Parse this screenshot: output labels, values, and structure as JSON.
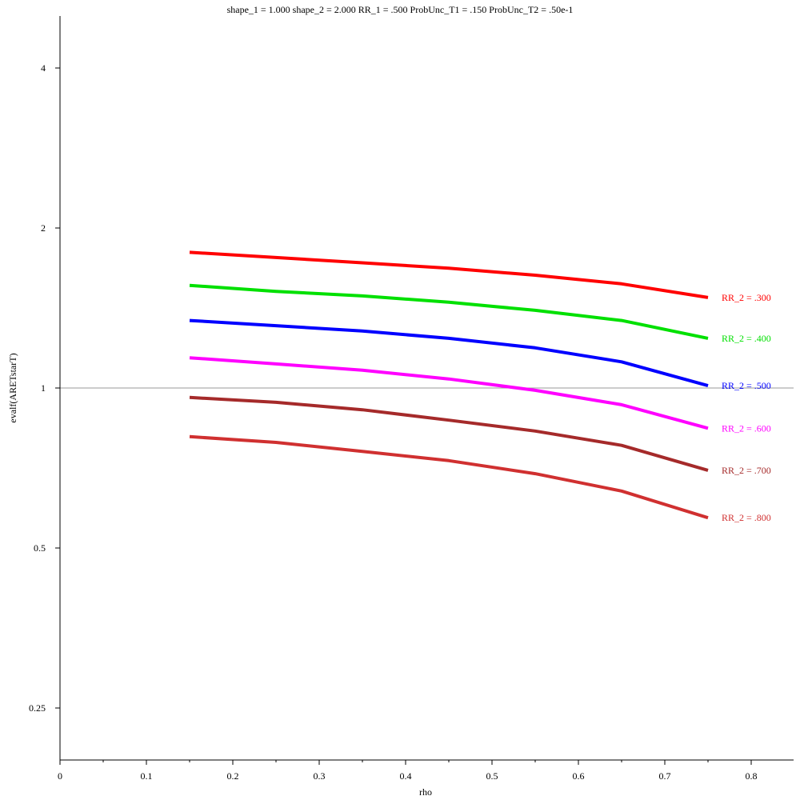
{
  "chart_data": {
    "type": "line",
    "title": "shape_1 = 1.000  shape_2 = 2.000  RR_1 = .500  ProbUnc_T1 = .150  ProbUnc_T2 = .50e-1",
    "xlabel": "rho",
    "ylabel": "evalf(ARETstarT)",
    "y_scale": "log2",
    "xlim": [
      0,
      0.85
    ],
    "ylim": [
      0.2,
      4.8
    ],
    "x_ticks": [
      0,
      0.1,
      0.2,
      0.3,
      0.4,
      0.5,
      0.6,
      0.7,
      0.8
    ],
    "x_tick_labels": [
      "0",
      "0.1",
      "0.2",
      "0.3",
      "0.4",
      "0.5",
      "0.6",
      "0.7",
      "0.8"
    ],
    "y_ticks": [
      0.25,
      0.5,
      1,
      2,
      4
    ],
    "y_tick_labels": [
      "0.25",
      "0.5",
      "1",
      "2",
      "4"
    ],
    "reference_line_y": 1,
    "grid": false,
    "x": [
      0.15,
      0.25,
      0.35,
      0.45,
      0.55,
      0.65,
      0.75
    ],
    "series": [
      {
        "name": "RR_2 = .300",
        "color": "#ff0000",
        "values": [
          1.8,
          1.76,
          1.72,
          1.68,
          1.63,
          1.57,
          1.48
        ]
      },
      {
        "name": "RR_2 = .400",
        "color": "#00e000",
        "values": [
          1.56,
          1.52,
          1.49,
          1.45,
          1.4,
          1.34,
          1.24
        ]
      },
      {
        "name": "RR_2 = .500",
        "color": "#0000ff",
        "values": [
          1.34,
          1.31,
          1.28,
          1.24,
          1.19,
          1.12,
          1.01
        ]
      },
      {
        "name": "RR_2 = .600",
        "color": "#ff00ff",
        "values": [
          1.14,
          1.11,
          1.08,
          1.04,
          0.99,
          0.93,
          0.84
        ]
      },
      {
        "name": "RR_2 = .700",
        "color": "#a52a2a",
        "values": [
          0.96,
          0.94,
          0.91,
          0.87,
          0.83,
          0.78,
          0.7
        ]
      },
      {
        "name": "RR_2 = .800",
        "color": "#d03030",
        "values": [
          0.81,
          0.79,
          0.76,
          0.73,
          0.69,
          0.64,
          0.57
        ]
      }
    ]
  }
}
